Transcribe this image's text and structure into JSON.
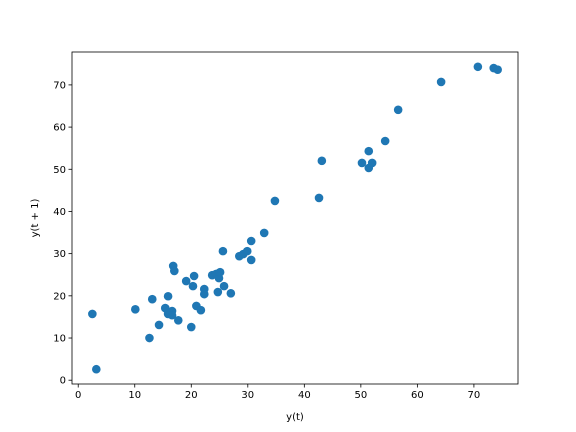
{
  "chart_data": {
    "type": "scatter",
    "x_label": "y(t)",
    "y_label": "y(t + 1)",
    "x": [
      2.5,
      3.2,
      10.1,
      12.6,
      13.1,
      14.3,
      15.4,
      15.9,
      15.9,
      16.6,
      16.8,
      17.0,
      16.6,
      17.7,
      19.1,
      20.0,
      20.3,
      20.5,
      20.9,
      21.7,
      22.3,
      22.3,
      23.7,
      24.4,
      24.7,
      24.9,
      25.1,
      25.6,
      25.8,
      27.0,
      28.5,
      29.2,
      29.9,
      30.6,
      30.6,
      32.9,
      34.8,
      42.6,
      43.1,
      50.2,
      51.4,
      51.4,
      52.0,
      54.3,
      56.6,
      64.2,
      70.7,
      73.5,
      74.2
    ],
    "values": [
      15.7,
      2.6,
      16.8,
      10.0,
      19.2,
      13.1,
      17.1,
      19.9,
      15.7,
      16.4,
      27.1,
      25.9,
      15.4,
      14.2,
      23.5,
      12.6,
      22.3,
      24.7,
      17.6,
      16.6,
      21.6,
      20.4,
      24.9,
      25.2,
      20.9,
      24.2,
      25.6,
      30.6,
      22.3,
      20.6,
      29.4,
      29.9,
      30.6,
      33.0,
      28.5,
      34.9,
      42.5,
      43.2,
      52.0,
      51.5,
      54.3,
      50.3,
      51.5,
      56.7,
      64.1,
      70.7,
      74.3,
      74.0,
      73.6
    ],
    "color": "#1f77b4",
    "xlim": [
      -1.1,
      77.8
    ],
    "ylim": [
      -0.9,
      77.8
    ],
    "xticks": [
      0,
      10,
      20,
      30,
      40,
      50,
      60,
      70
    ],
    "yticks": [
      0,
      10,
      20,
      30,
      40,
      50,
      60,
      70
    ]
  }
}
